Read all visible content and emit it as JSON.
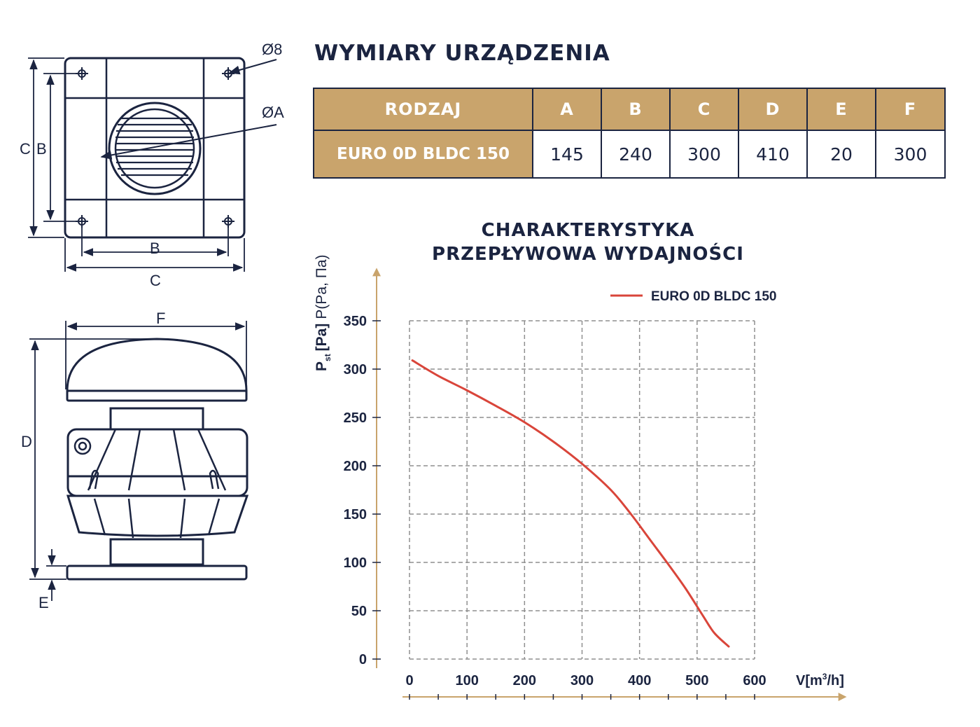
{
  "title": "WYMIARY URZĄDZENIA",
  "diagram": {
    "top_labels": {
      "hole": "Ø8",
      "duct": "ØA",
      "c_left": "C",
      "b_left": "B",
      "b_bottom": "B",
      "c_bottom": "C"
    },
    "side_labels": {
      "f": "F",
      "d": "D",
      "e": "E"
    }
  },
  "table": {
    "headers": [
      "RODZAJ",
      "A",
      "B",
      "C",
      "D",
      "E",
      "F"
    ],
    "rows": [
      {
        "cells": [
          "EURO 0D BLDC 150",
          "145",
          "240",
          "300",
          "410",
          "20",
          "300"
        ]
      }
    ]
  },
  "chart_title": {
    "line1": "CHARAKTERYSTYKA",
    "line2": "PRZEPŁYWOWA WYDAJNOŚCI"
  },
  "chart_data": {
    "type": "line",
    "ylabel": {
      "main": "P",
      "sub": "st",
      "unit": "[Pa]",
      "alt": "P(Pa, Па)"
    },
    "xlabel": {
      "main": "V[m",
      "sup": "3",
      "end": "/h]"
    },
    "xlim": [
      0,
      600
    ],
    "ylim": [
      0,
      350
    ],
    "x_ticks": [
      "0",
      "100",
      "200",
      "300",
      "400",
      "500",
      "600"
    ],
    "y_ticks": [
      "0",
      "50",
      "100",
      "150",
      "200",
      "250",
      "300",
      "350"
    ],
    "grid": true,
    "legend_position": "top-right",
    "series": [
      {
        "name": "EURO 0D BLDC 150",
        "color": "#d9453a",
        "x": [
          5,
          50,
          100,
          150,
          200,
          250,
          300,
          350,
          385,
          420,
          450,
          480,
          510,
          530,
          555
        ],
        "y": [
          309,
          293,
          278,
          262,
          245,
          225,
          202,
          175,
          150,
          122,
          98,
          73,
          45,
          27,
          13
        ]
      }
    ]
  }
}
